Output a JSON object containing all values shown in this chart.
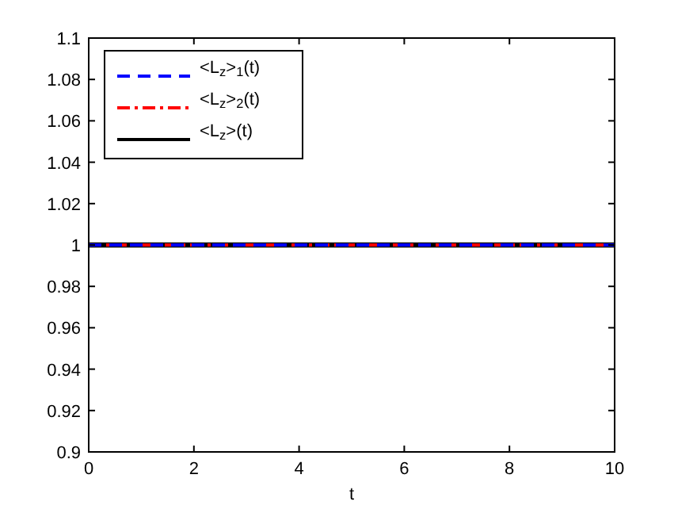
{
  "chart_data": {
    "type": "line",
    "xlabel": "t",
    "x": [
      0,
      10
    ],
    "xlim": [
      0,
      10
    ],
    "xticks": [
      0,
      2,
      4,
      6,
      8,
      10
    ],
    "ylim": [
      0.9,
      1.1
    ],
    "yticks": [
      0.9,
      0.92,
      0.94,
      0.96,
      0.98,
      1,
      1.02,
      1.04,
      1.06,
      1.08,
      1.1
    ],
    "grid": false,
    "legend": "top left",
    "series": [
      {
        "name": "<L$_{z}$>$_{1}$(t)",
        "color": "#0000ff",
        "values": [
          1,
          1
        ],
        "line_style": "dashed"
      },
      {
        "name": "<L$_{z}$>$_{2}$(t)",
        "color": "#ff0000",
        "values": [
          1,
          1
        ],
        "line_style": "dashdot"
      },
      {
        "name": "<L$_{z}$>(t)",
        "color": "#000000",
        "values": [
          1,
          1
        ],
        "line_style": "solid"
      }
    ]
  }
}
